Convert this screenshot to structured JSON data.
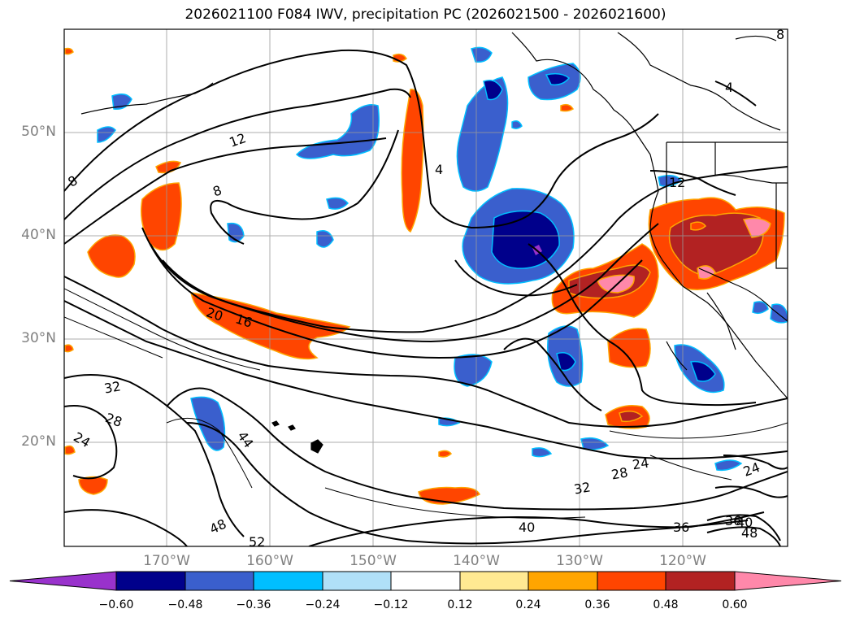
{
  "title": "2026021100 F084 IWV, precipitation PC (2026021500 - 2026021600)",
  "map": {
    "lat_labels": [
      "50°N",
      "40°N",
      "30°N",
      "20°N"
    ],
    "lon_labels": [
      "170°W",
      "160°W",
      "150°W",
      "140°W",
      "130°W",
      "120°W"
    ],
    "contour_labels": [
      "12",
      "8",
      "8",
      "4",
      "4",
      "12",
      "8",
      "20",
      "16",
      "32",
      "28",
      "24",
      "44",
      "48",
      "52",
      "40",
      "32",
      "28",
      "24",
      "24",
      "36",
      "36",
      "40",
      "48"
    ]
  },
  "colorbar": {
    "ticks": [
      "−0.60",
      "−0.48",
      "−0.36",
      "−0.24",
      "−0.12",
      "0.12",
      "0.24",
      "0.36",
      "0.48",
      "0.60"
    ],
    "colors": [
      "#9932cc",
      "#00008b",
      "#3a5fcd",
      "#00bfff",
      "#b0e0f8",
      "#ffffff",
      "#ffe992",
      "#ffa500",
      "#ff4500",
      "#b22222",
      "#ff88aa"
    ],
    "extend": "both"
  }
}
